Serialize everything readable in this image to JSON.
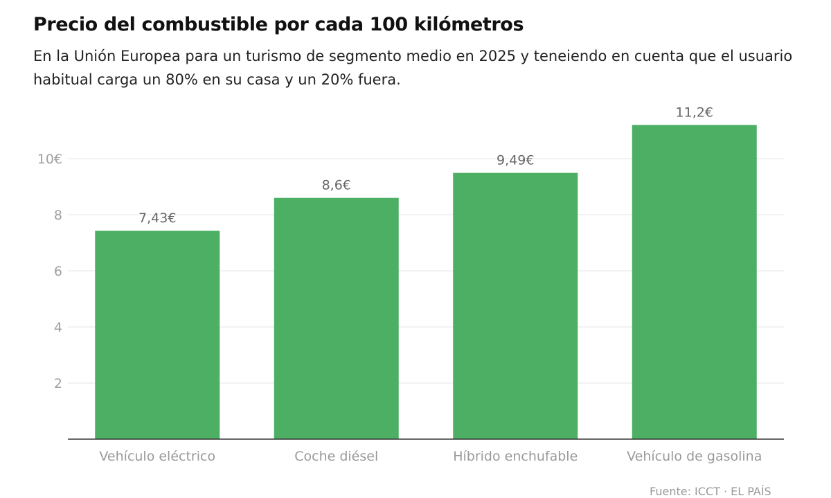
{
  "chart_data": {
    "type": "bar",
    "title": "Precio del combustible por cada 100 kilómetros",
    "subtitle": "En la Unión Europea para un turismo de segmento medio en 2025 y teneiendo en cuenta que el usuario habitual carga un 80% en su casa y un 20% fuera.",
    "categories": [
      "Vehículo eléctrico",
      "Coche diésel",
      "Híbrido enchufable",
      "Vehículo de gasolina"
    ],
    "values": [
      7.43,
      8.6,
      9.49,
      11.2
    ],
    "data_labels": [
      "7,43€",
      "8,6€",
      "9,49€",
      "11,2€"
    ],
    "y_ticks": [
      2,
      4,
      6,
      8,
      10
    ],
    "y_tick_labels": [
      "2",
      "4",
      "6",
      "8",
      "10€"
    ],
    "ylim": [
      0,
      11.2
    ],
    "xlabel": "",
    "ylabel": "",
    "grid": true,
    "legend": "none",
    "bar_color": "#4caf63",
    "source": "Fuente: ICCT · EL PAÍS"
  }
}
